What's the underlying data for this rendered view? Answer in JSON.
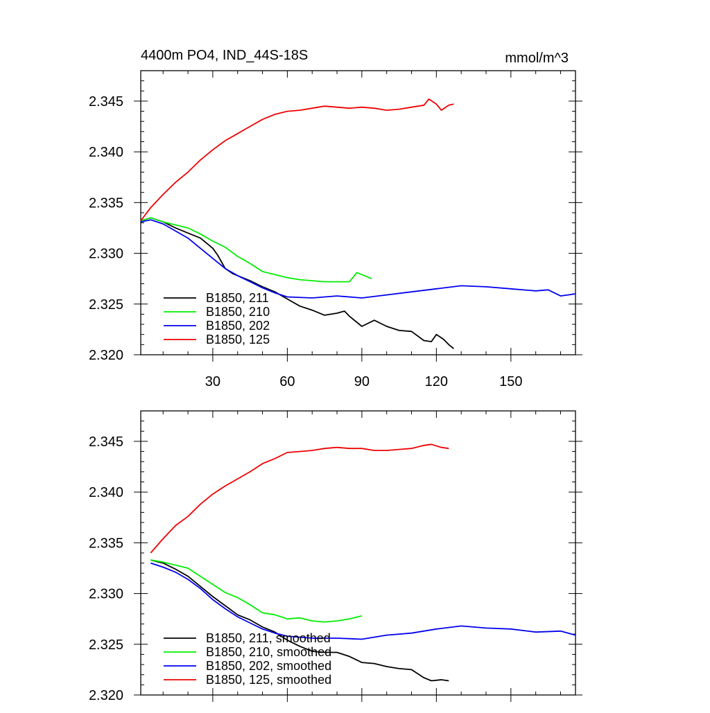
{
  "chart_data": [
    {
      "type": "line",
      "title": "4400m PO4, IND_44S-18S",
      "units": "mmol/m^3",
      "xlabel": "",
      "ylabel": "",
      "xlim": [
        1,
        176
      ],
      "ylim": [
        2.32,
        2.348
      ],
      "x_ticks": [
        30,
        60,
        90,
        120,
        150
      ],
      "x_tick_labels": [
        "30",
        "60",
        "90",
        "120",
        "150"
      ],
      "y_ticks": [
        2.32,
        2.325,
        2.33,
        2.335,
        2.34,
        2.345
      ],
      "y_tick_labels": [
        "2.320",
        "2.325",
        "2.330",
        "2.335",
        "2.340",
        "2.345"
      ],
      "grid": false,
      "legend_position": "bottom-left",
      "series": [
        {
          "name": "B1850, 211",
          "color": "#000000",
          "x": [
            1,
            5,
            10,
            15,
            20,
            25,
            30,
            32,
            35,
            38,
            40,
            45,
            50,
            55,
            60,
            65,
            70,
            75,
            80,
            83,
            85,
            90,
            95,
            100,
            105,
            110,
            115,
            118,
            120,
            123,
            125,
            127
          ],
          "values": [
            2.3332,
            2.3335,
            2.3331,
            2.3325,
            2.332,
            2.3315,
            2.3305,
            2.3298,
            2.3285,
            2.328,
            2.3278,
            2.3273,
            2.3267,
            2.3262,
            2.3255,
            2.3248,
            2.3244,
            2.3239,
            2.3241,
            2.3243,
            2.3238,
            2.3228,
            2.3234,
            2.3228,
            2.3224,
            2.3223,
            2.3214,
            2.3213,
            2.322,
            2.3215,
            2.321,
            2.3206
          ]
        },
        {
          "name": "B1850, 210",
          "color": "#00ee00",
          "x": [
            1,
            5,
            10,
            15,
            20,
            25,
            30,
            35,
            40,
            45,
            50,
            55,
            60,
            65,
            70,
            75,
            80,
            85,
            88,
            90,
            94
          ],
          "values": [
            2.3332,
            2.3335,
            2.3331,
            2.3328,
            2.3325,
            2.3319,
            2.3312,
            2.3306,
            2.3297,
            2.329,
            2.3282,
            2.3279,
            2.3276,
            2.3274,
            2.3273,
            2.3272,
            2.3272,
            2.3272,
            2.3281,
            2.3279,
            2.3275
          ]
        },
        {
          "name": "B1850, 202",
          "color": "#0000ee",
          "x": [
            1,
            5,
            10,
            15,
            20,
            25,
            30,
            35,
            40,
            45,
            50,
            55,
            60,
            70,
            80,
            90,
            100,
            110,
            120,
            130,
            140,
            150,
            160,
            165,
            170,
            176
          ],
          "values": [
            2.3331,
            2.3333,
            2.3329,
            2.3322,
            2.3315,
            2.3305,
            2.3295,
            2.3285,
            2.3278,
            2.3272,
            2.3266,
            2.3261,
            2.3257,
            2.3256,
            2.3258,
            2.3256,
            2.3259,
            2.3262,
            2.3265,
            2.3268,
            2.3267,
            2.3265,
            2.3263,
            2.3264,
            2.3258,
            2.326
          ]
        },
        {
          "name": "B1850, 125",
          "color": "#ee0000",
          "x": [
            1,
            5,
            10,
            15,
            20,
            25,
            30,
            35,
            40,
            45,
            50,
            55,
            60,
            65,
            70,
            75,
            80,
            85,
            90,
            95,
            100,
            105,
            110,
            115,
            117,
            120,
            122,
            125,
            127
          ],
          "values": [
            2.3332,
            2.3345,
            2.3358,
            2.337,
            2.338,
            2.3392,
            2.3402,
            2.3411,
            2.3418,
            2.3425,
            2.3432,
            2.3437,
            2.344,
            2.3441,
            2.3443,
            2.3445,
            2.3444,
            2.3443,
            2.3444,
            2.3443,
            2.3441,
            2.3442,
            2.3444,
            2.3446,
            2.3452,
            2.3447,
            2.3441,
            2.3446,
            2.3447
          ]
        }
      ]
    },
    {
      "type": "line",
      "title": "",
      "xlabel": "",
      "ylabel": "",
      "xlim": [
        1,
        176
      ],
      "ylim": [
        2.32,
        2.348
      ],
      "x_ticks": [
        30,
        60,
        90,
        120,
        150
      ],
      "y_ticks": [
        2.32,
        2.325,
        2.33,
        2.335,
        2.34,
        2.345
      ],
      "y_tick_labels": [
        "2.320",
        "2.325",
        "2.330",
        "2.335",
        "2.340",
        "2.345"
      ],
      "grid": false,
      "legend_position": "bottom-left",
      "series": [
        {
          "name": "B1850, 211, smoothed",
          "color": "#000000",
          "x": [
            5,
            10,
            15,
            20,
            25,
            30,
            35,
            40,
            45,
            50,
            55,
            60,
            65,
            70,
            75,
            80,
            85,
            90,
            95,
            100,
            105,
            110,
            115,
            118,
            122,
            125
          ],
          "values": [
            2.3333,
            2.333,
            2.3324,
            2.3317,
            2.3307,
            2.3297,
            2.3288,
            2.3279,
            2.3274,
            2.3267,
            2.3262,
            2.3254,
            2.3248,
            2.3243,
            2.3242,
            2.3242,
            2.3238,
            2.3232,
            2.3231,
            2.3228,
            2.3226,
            2.3225,
            2.3217,
            2.3214,
            2.3215,
            2.3214
          ]
        },
        {
          "name": "B1850, 210, smoothed",
          "color": "#00ee00",
          "x": [
            5,
            10,
            15,
            20,
            25,
            30,
            35,
            40,
            45,
            50,
            55,
            60,
            65,
            70,
            75,
            80,
            85,
            90
          ],
          "values": [
            2.3333,
            2.3331,
            2.3328,
            2.3325,
            2.3317,
            2.3309,
            2.3301,
            2.3296,
            2.3289,
            2.3281,
            2.3279,
            2.3275,
            2.3276,
            2.3273,
            2.3272,
            2.3273,
            2.3275,
            2.3278
          ]
        },
        {
          "name": "B1850, 202, smoothed",
          "color": "#0000ee",
          "x": [
            5,
            10,
            15,
            20,
            25,
            30,
            35,
            40,
            45,
            50,
            55,
            60,
            70,
            80,
            90,
            100,
            110,
            120,
            130,
            140,
            150,
            160,
            170,
            176
          ],
          "values": [
            2.333,
            2.3326,
            2.3321,
            2.3314,
            2.3305,
            2.3294,
            2.3285,
            2.3277,
            2.3271,
            2.3265,
            2.3261,
            2.3258,
            2.3256,
            2.3256,
            2.3255,
            2.3259,
            2.3261,
            2.3265,
            2.3268,
            2.3266,
            2.3265,
            2.3262,
            2.3263,
            2.3259
          ]
        },
        {
          "name": "B1850, 125, smoothed",
          "color": "#ee0000",
          "x": [
            5,
            10,
            15,
            20,
            25,
            30,
            35,
            40,
            45,
            50,
            55,
            60,
            65,
            70,
            75,
            80,
            85,
            90,
            95,
            100,
            105,
            110,
            115,
            118,
            122,
            125
          ],
          "values": [
            2.334,
            2.3354,
            2.3367,
            2.3376,
            2.3388,
            2.3398,
            2.3406,
            2.3413,
            2.342,
            2.3428,
            2.3433,
            2.3439,
            2.344,
            2.3441,
            2.3443,
            2.3444,
            2.3443,
            2.3443,
            2.3441,
            2.3441,
            2.3442,
            2.3443,
            2.3446,
            2.3447,
            2.3444,
            2.3443
          ]
        }
      ]
    }
  ]
}
